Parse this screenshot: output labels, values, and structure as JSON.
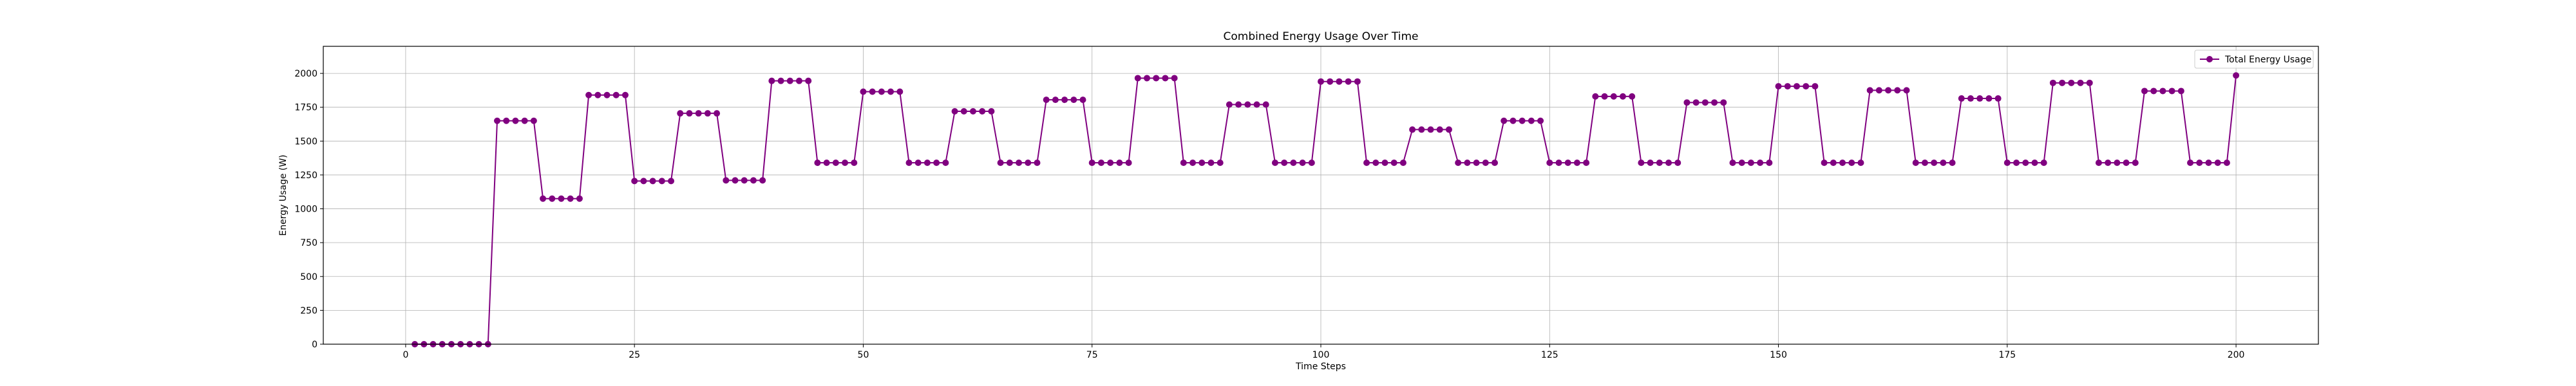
{
  "chart_data": {
    "type": "line",
    "title": "Combined Energy Usage Over Time",
    "xlabel": "Time Steps",
    "ylabel": "Energy Usage (W)",
    "xlim": [
      -9,
      209
    ],
    "ylim": [
      0,
      2200
    ],
    "xticks": [
      0,
      25,
      50,
      75,
      100,
      125,
      150,
      175,
      200
    ],
    "yticks": [
      0,
      250,
      500,
      750,
      1000,
      1250,
      1500,
      1750,
      2000
    ],
    "grid": true,
    "legend_position": "top-right",
    "series": [
      {
        "name": "Total Energy Usage",
        "color": "#800080",
        "marker": "circle",
        "x_start": 1,
        "x_step": 1,
        "values": [
          0,
          0,
          0,
          0,
          0,
          0,
          0,
          0,
          0,
          1650,
          1650,
          1650,
          1650,
          1650,
          1075,
          1075,
          1075,
          1075,
          1075,
          1840,
          1840,
          1840,
          1840,
          1840,
          1205,
          1205,
          1205,
          1205,
          1205,
          1705,
          1705,
          1705,
          1705,
          1705,
          1210,
          1210,
          1210,
          1210,
          1210,
          1945,
          1945,
          1945,
          1945,
          1945,
          1340,
          1340,
          1340,
          1340,
          1340,
          1865,
          1865,
          1865,
          1865,
          1865,
          1340,
          1340,
          1340,
          1340,
          1340,
          1720,
          1720,
          1720,
          1720,
          1720,
          1340,
          1340,
          1340,
          1340,
          1340,
          1805,
          1805,
          1805,
          1805,
          1805,
          1340,
          1340,
          1340,
          1340,
          1340,
          1965,
          1965,
          1965,
          1965,
          1965,
          1340,
          1340,
          1340,
          1340,
          1340,
          1770,
          1770,
          1770,
          1770,
          1770,
          1340,
          1340,
          1340,
          1340,
          1340,
          1940,
          1940,
          1940,
          1940,
          1940,
          1340,
          1340,
          1340,
          1340,
          1340,
          1585,
          1585,
          1585,
          1585,
          1585,
          1340,
          1340,
          1340,
          1340,
          1340,
          1650,
          1650,
          1650,
          1650,
          1650,
          1340,
          1340,
          1340,
          1340,
          1340,
          1830,
          1830,
          1830,
          1830,
          1830,
          1340,
          1340,
          1340,
          1340,
          1340,
          1785,
          1785,
          1785,
          1785,
          1785,
          1340,
          1340,
          1340,
          1340,
          1340,
          1905,
          1905,
          1905,
          1905,
          1905,
          1340,
          1340,
          1340,
          1340,
          1340,
          1875,
          1875,
          1875,
          1875,
          1875,
          1340,
          1340,
          1340,
          1340,
          1340,
          1815,
          1815,
          1815,
          1815,
          1815,
          1340,
          1340,
          1340,
          1340,
          1340,
          1930,
          1930,
          1930,
          1930,
          1930,
          1340,
          1340,
          1340,
          1340,
          1340,
          1870,
          1870,
          1870,
          1870,
          1870,
          1340,
          1340,
          1340,
          1340,
          1340,
          1985
        ]
      }
    ]
  }
}
